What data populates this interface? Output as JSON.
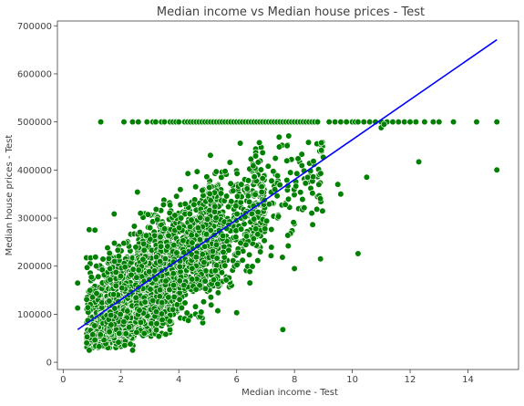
{
  "colors": {
    "points": "#008000",
    "point_edge": "#ffffff",
    "regression": "#0000ff",
    "axes": "#404040",
    "background": "#ffffff"
  },
  "chart_data": {
    "type": "scatter",
    "title": "Median income vs Median house prices - Test",
    "xlabel": "Median income - Test",
    "ylabel": "Median house prices - Test",
    "xlim": [
      -0.2,
      15.75
    ],
    "ylim": [
      -15000,
      710000
    ],
    "xticks": [
      0,
      2,
      4,
      6,
      8,
      10,
      12,
      14
    ],
    "yticks": [
      0,
      100000,
      200000,
      300000,
      400000,
      500000,
      600000,
      700000
    ],
    "grid": false,
    "legend": "none",
    "regression_line": {
      "x": [
        0.5,
        15.0
      ],
      "y": [
        68000,
        671000
      ]
    },
    "density_regions": [
      {
        "xlo": 0.8,
        "xhi": 2.5,
        "ylo": 30000,
        "yhi": 220000,
        "n": 500
      },
      {
        "xlo": 1.5,
        "xhi": 4.0,
        "ylo": 50000,
        "yhi": 320000,
        "n": 700
      },
      {
        "xlo": 2.5,
        "xhi": 5.5,
        "ylo": 80000,
        "yhi": 400000,
        "n": 750
      },
      {
        "xlo": 4.0,
        "xhi": 7.0,
        "ylo": 150000,
        "yhi": 450000,
        "n": 450
      },
      {
        "xlo": 6.0,
        "xhi": 9.0,
        "ylo": 180000,
        "yhi": 480000,
        "n": 160
      }
    ],
    "capped_series": {
      "y": 500001,
      "x": [
        1.3,
        2.1,
        2.4,
        2.6,
        2.9,
        3.1,
        3.2,
        3.4,
        3.5,
        3.7,
        3.8,
        3.9,
        4.0,
        4.2,
        4.3,
        4.4,
        4.5,
        4.6,
        4.7,
        4.8,
        4.9,
        5.0,
        5.1,
        5.2,
        5.3,
        5.4,
        5.5,
        5.6,
        5.7,
        5.8,
        5.9,
        6.0,
        6.1,
        6.2,
        6.3,
        6.4,
        6.5,
        6.6,
        6.7,
        6.8,
        6.9,
        7.0,
        7.1,
        7.2,
        7.3,
        7.4,
        7.5,
        7.6,
        7.7,
        7.8,
        7.9,
        8.0,
        8.1,
        8.2,
        8.3,
        8.4,
        8.5,
        8.6,
        8.7,
        8.8,
        9.2,
        9.4,
        9.6,
        9.8,
        10.0,
        10.1,
        10.2,
        10.4,
        10.6,
        10.8,
        11.0,
        11.2,
        11.4,
        11.6,
        11.8,
        12.0,
        12.2,
        12.5,
        12.8,
        13.0,
        13.5,
        14.3,
        15.0
      ]
    },
    "extra_points": [
      {
        "x": 15.0,
        "y": 400000
      },
      {
        "x": 12.3,
        "y": 417000
      },
      {
        "x": 10.5,
        "y": 385000
      },
      {
        "x": 10.2,
        "y": 226000
      },
      {
        "x": 7.6,
        "y": 68000
      },
      {
        "x": 9.6,
        "y": 350000
      },
      {
        "x": 8.9,
        "y": 215000
      },
      {
        "x": 11.0,
        "y": 488000
      },
      {
        "x": 11.1,
        "y": 495000
      },
      {
        "x": 0.9,
        "y": 276000
      },
      {
        "x": 1.1,
        "y": 275000
      },
      {
        "x": 0.5,
        "y": 113000
      },
      {
        "x": 0.5,
        "y": 165000
      },
      {
        "x": 9.5,
        "y": 370000
      },
      {
        "x": 8.0,
        "y": 195000
      },
      {
        "x": 6.0,
        "y": 103000
      },
      {
        "x": 2.4,
        "y": 25000
      },
      {
        "x": 0.9,
        "y": 25000
      }
    ]
  }
}
